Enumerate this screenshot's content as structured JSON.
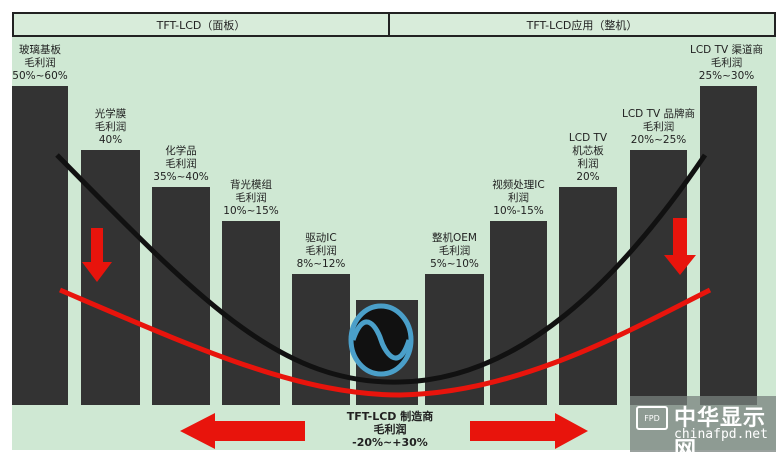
{
  "headers": {
    "left": "TFT-LCD（面板）",
    "right": "TFT-LCD应用（整机）"
  },
  "bars": [
    {
      "lines": [
        "玻璃基板",
        "毛利润",
        "50%~60%"
      ],
      "level": 0.85
    },
    {
      "lines": [
        "光学膜",
        "毛利润",
        "40%"
      ],
      "level": 0.68
    },
    {
      "lines": [
        "化学品",
        "毛利润",
        "35%~40%"
      ],
      "level": 0.58
    },
    {
      "lines": [
        "背光模组",
        "毛利润",
        "10%~15%"
      ],
      "level": 0.49
    },
    {
      "lines": [
        "驱动IC",
        "毛利润",
        "8%~12%"
      ],
      "level": 0.35
    },
    {
      "lines": [],
      "level": 0.28
    },
    {
      "lines": [
        "整机OEM",
        "毛利润",
        "5%~10%"
      ],
      "level": 0.35
    },
    {
      "lines": [
        "视频处理IC",
        "利润",
        "10%-15%"
      ],
      "level": 0.49
    },
    {
      "lines": [
        "LCD TV",
        "机芯板",
        "利润",
        "20%"
      ],
      "level": 0.58
    },
    {
      "lines": [
        "LCD TV 品牌商",
        "毛利润",
        "20%~25%"
      ],
      "level": 0.68
    },
    {
      "lines": [
        "LCD TV 渠道商",
        "毛利润",
        "25%~30%"
      ],
      "level": 0.85
    }
  ],
  "center": {
    "line1": "TFT-LCD 制造商",
    "line2": "毛利润",
    "line3": "-20%~+30%"
  },
  "watermark": {
    "badge": "FPD",
    "name": "中华显示网",
    "url": "chinafpd.net"
  },
  "colors": {
    "background": "#cfe8d3",
    "bar": "#333333",
    "curve_black": "#111111",
    "curve_red": "#e8140c",
    "logo": "#4a9fc9"
  }
}
